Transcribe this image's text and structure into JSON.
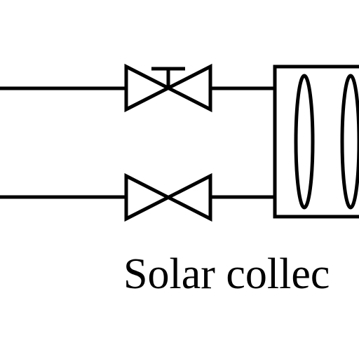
{
  "caption": "Solar collec",
  "components": {
    "upper_pipe": "upper-pipe",
    "lower_pipe": "lower-pipe",
    "upper_valve": "gate-valve-with-handwheel",
    "lower_valve": "gate-valve",
    "collector": "solar-collector-box"
  },
  "colors": {
    "stroke": "#000000",
    "background": "#ffffff"
  }
}
